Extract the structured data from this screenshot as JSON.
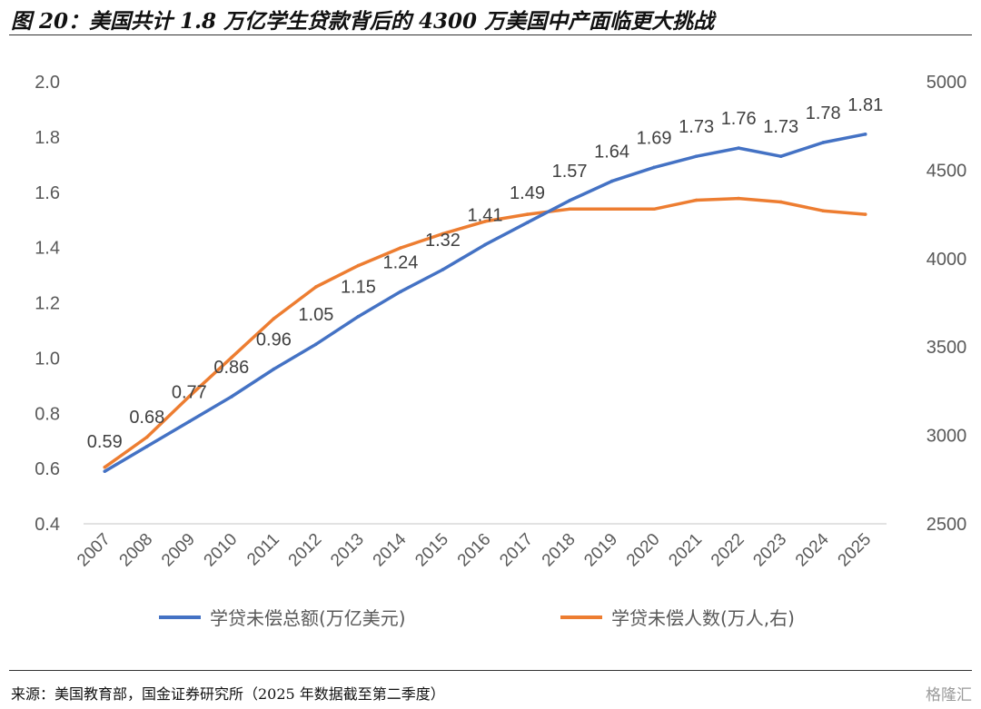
{
  "figure": {
    "title": "图 20：美国共计 1.8 万亿学生贷款背后的 4300 万美国中产面临更大挑战",
    "source": "来源：美国教育部，国金证券研究所（2025 年数据截至第二季度）",
    "watermark": "格隆汇"
  },
  "chart_data": {
    "type": "line",
    "categories": [
      "2007",
      "2008",
      "2009",
      "2010",
      "2011",
      "2012",
      "2013",
      "2014",
      "2015",
      "2016",
      "2017",
      "2018",
      "2019",
      "2020",
      "2021",
      "2022",
      "2023",
      "2024",
      "2025"
    ],
    "series": [
      {
        "name": "学贷未偿总额(万亿美元)",
        "axis": "left",
        "color": "#4472C4",
        "values": [
          0.59,
          0.68,
          0.77,
          0.86,
          0.96,
          1.05,
          1.15,
          1.24,
          1.32,
          1.41,
          1.49,
          1.57,
          1.64,
          1.69,
          1.73,
          1.76,
          1.73,
          1.78,
          1.81
        ],
        "data_labels": [
          "0.59",
          "0.68",
          "0.77",
          "0.86",
          "0.96",
          "1.05",
          "1.15",
          "1.24",
          "1.32",
          "1.41",
          "1.49",
          "1.57",
          "1.64",
          "1.69",
          "1.73",
          "1.76",
          "1.73",
          "1.78",
          "1.81"
        ]
      },
      {
        "name": "学贷未偿人数(万人,右)",
        "axis": "right",
        "color": "#ED7D31",
        "values": [
          2820,
          2990,
          3220,
          3440,
          3660,
          3840,
          3960,
          4060,
          4140,
          4210,
          4250,
          4280,
          4280,
          4280,
          4330,
          4340,
          4320,
          4270,
          4250
        ]
      }
    ],
    "y_left": {
      "ylim": [
        0.4,
        2.0
      ],
      "ticks": [
        "0.4",
        "0.6",
        "0.8",
        "1.0",
        "1.2",
        "1.4",
        "1.6",
        "1.8",
        "2.0"
      ]
    },
    "y_right": {
      "ylim": [
        2500,
        5000
      ],
      "ticks": [
        "2500",
        "3000",
        "3500",
        "4000",
        "4500",
        "5000"
      ]
    },
    "grid": false,
    "legend_position": "bottom"
  }
}
